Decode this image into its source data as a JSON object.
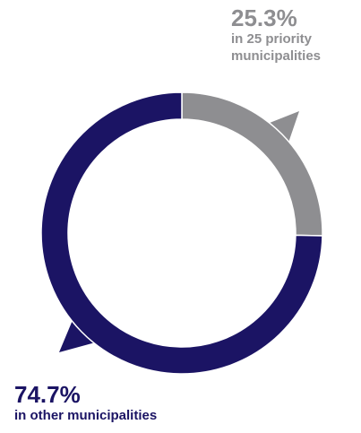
{
  "chart_data": {
    "type": "pie",
    "subtype": "donut",
    "slices": [
      {
        "label": "in 25 priority municipalities",
        "label_line1": "in 25 priority",
        "label_line2": "municipalities",
        "value": 25.3,
        "value_text": "25.3%",
        "color": "#8e8e91"
      },
      {
        "label": "in other municipalities",
        "value": 74.7,
        "value_text": "74.7%",
        "color": "#1b1464"
      }
    ]
  }
}
